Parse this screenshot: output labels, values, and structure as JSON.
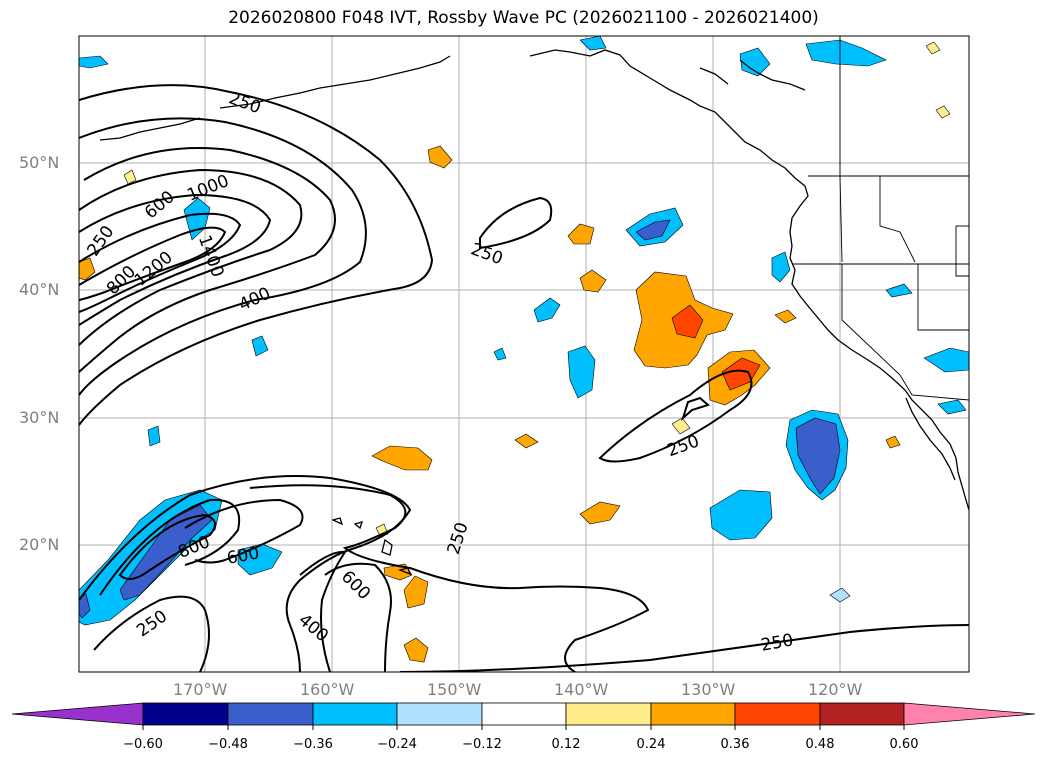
{
  "title": "2026020800 F048 IVT, Rossby Wave PC (2026021100 - 2026021400)",
  "lat_labels": [
    "50°N",
    "40°N",
    "30°N",
    "20°N"
  ],
  "lon_labels": [
    "170°W",
    "160°W",
    "150°W",
    "140°W",
    "130°W",
    "120°W"
  ],
  "contour_labels": [
    "250",
    "600",
    "1000",
    "250",
    "800",
    "1200",
    "1400",
    "400",
    "250",
    "250",
    "250",
    "800",
    "600",
    "600",
    "400",
    "250",
    "250",
    "250"
  ],
  "colorbar": {
    "ticks": [
      "−0.60",
      "−0.48",
      "−0.36",
      "−0.24",
      "−0.12",
      "0.12",
      "0.24",
      "0.36",
      "0.48",
      "0.60"
    ],
    "colors": [
      "#9932cc",
      "#00008b",
      "#3a5fcd",
      "#00bfff",
      "#b0e2ff",
      "#ffffff",
      "#ffec8b",
      "#ffa500",
      "#ff4500",
      "#b22222",
      "#ff82ab"
    ]
  }
}
